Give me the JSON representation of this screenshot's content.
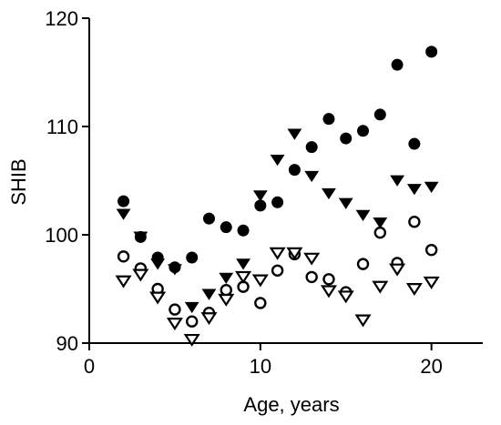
{
  "chart_data": {
    "type": "scatter",
    "title": "",
    "xlabel": "Age, years",
    "ylabel": "SHIB",
    "xlim": [
      0,
      23
    ],
    "ylim": [
      90,
      120
    ],
    "x_ticks": [
      0,
      10,
      20
    ],
    "y_ticks": [
      90,
      100,
      110,
      120
    ],
    "grid": false,
    "legend": "none",
    "series": [
      {
        "marker": "filled-circle",
        "color": "#000000",
        "points": [
          [
            2,
            103.1
          ],
          [
            3,
            99.8
          ],
          [
            4,
            97.9
          ],
          [
            5,
            97.0
          ],
          [
            6,
            97.9
          ],
          [
            7,
            101.5
          ],
          [
            8,
            100.7
          ],
          [
            9,
            100.4
          ],
          [
            10,
            102.7
          ],
          [
            11,
            103.0
          ],
          [
            12,
            106.0
          ],
          [
            13,
            108.1
          ],
          [
            14,
            110.7
          ],
          [
            15,
            108.9
          ],
          [
            16,
            109.6
          ],
          [
            17,
            111.1
          ],
          [
            18,
            115.7
          ],
          [
            19,
            108.4
          ],
          [
            20,
            116.9
          ]
        ]
      },
      {
        "marker": "filled-triangle-down",
        "color": "#000000",
        "points": [
          [
            2,
            102.0
          ],
          [
            3,
            99.9
          ],
          [
            4,
            97.4
          ],
          [
            5,
            96.9
          ],
          [
            6,
            93.4
          ],
          [
            7,
            94.6
          ],
          [
            8,
            96.1
          ],
          [
            9,
            97.4
          ],
          [
            10,
            103.7
          ],
          [
            11,
            107.0
          ],
          [
            12,
            109.4
          ],
          [
            13,
            105.5
          ],
          [
            14,
            103.9
          ],
          [
            15,
            103.0
          ],
          [
            16,
            101.9
          ],
          [
            17,
            101.2
          ],
          [
            18,
            105.1
          ],
          [
            19,
            104.3
          ],
          [
            20,
            104.5
          ]
        ]
      },
      {
        "marker": "open-circle",
        "color": "#000000",
        "points": [
          [
            2,
            98.0
          ],
          [
            3,
            96.9
          ],
          [
            4,
            95.0
          ],
          [
            5,
            93.1
          ],
          [
            6,
            92.0
          ],
          [
            7,
            92.8
          ],
          [
            8,
            94.9
          ],
          [
            9,
            95.2
          ],
          [
            10,
            93.7
          ],
          [
            11,
            96.7
          ],
          [
            12,
            98.2
          ],
          [
            13,
            96.1
          ],
          [
            14,
            95.9
          ],
          [
            15,
            94.7
          ],
          [
            16,
            97.3
          ],
          [
            17,
            100.2
          ],
          [
            18,
            97.4
          ],
          [
            19,
            101.2
          ],
          [
            20,
            98.6
          ]
        ]
      },
      {
        "marker": "open-triangle-down",
        "color": "#000000",
        "points": [
          [
            2,
            95.8
          ],
          [
            3,
            96.4
          ],
          [
            4,
            94.3
          ],
          [
            5,
            91.9
          ],
          [
            6,
            90.4
          ],
          [
            7,
            92.4
          ],
          [
            8,
            94.1
          ],
          [
            9,
            96.2
          ],
          [
            10,
            95.9
          ],
          [
            11,
            98.4
          ],
          [
            12,
            98.4
          ],
          [
            13,
            97.9
          ],
          [
            14,
            94.9
          ],
          [
            15,
            94.4
          ],
          [
            16,
            92.2
          ],
          [
            17,
            95.3
          ],
          [
            18,
            96.9
          ],
          [
            19,
            95.1
          ],
          [
            20,
            95.7
          ]
        ]
      }
    ]
  }
}
